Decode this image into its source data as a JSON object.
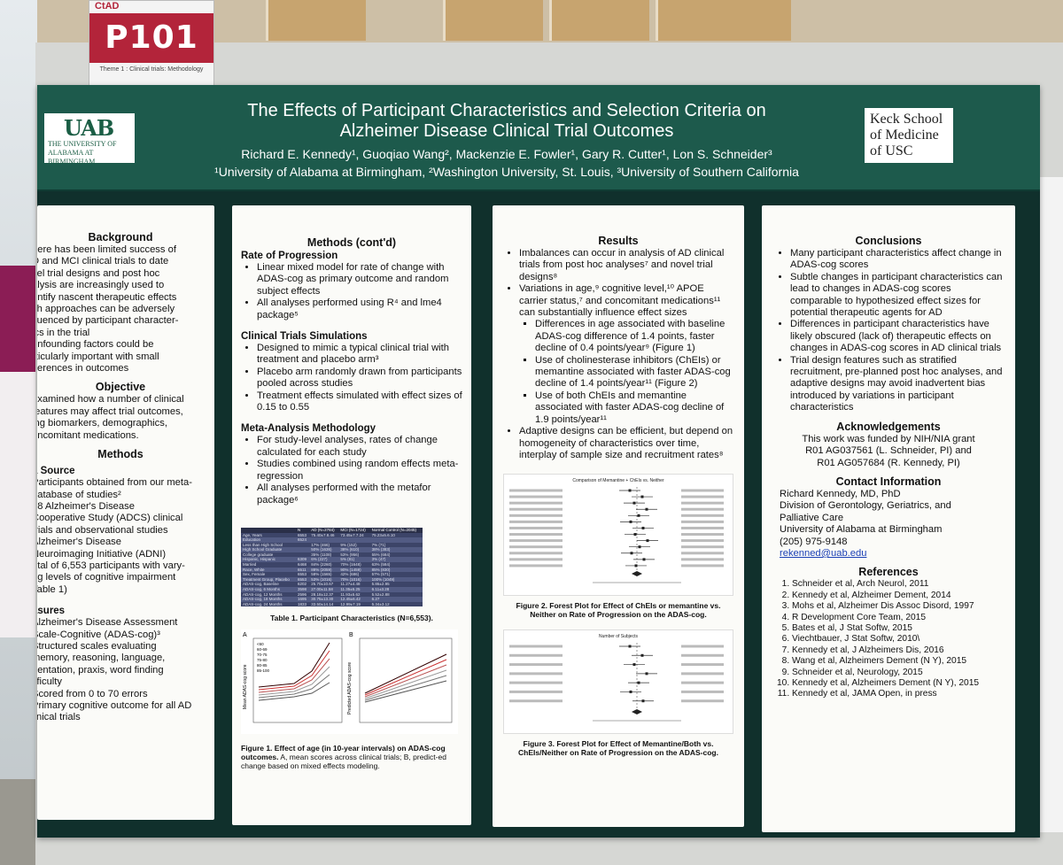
{
  "sign": {
    "logo_text": "CtAD",
    "number": "P101",
    "theme": "Theme 1 : Clinical trials: Methodology"
  },
  "header": {
    "uab_logo": {
      "mark": "UAB",
      "line1": "THE UNIVERSITY OF",
      "line2": "ALABAMA AT BIRMINGHAM"
    },
    "keck_logo": {
      "line1": "Keck School",
      "line2": "of Medicine",
      "line3": "of USC"
    },
    "title_line1": "The Effects of Participant Characteristics and Selection Criteria on",
    "title_line2": "Alzheimer Disease Clinical Trial Outcomes",
    "authors": "Richard E. Kennedy¹, Guoqiao Wang², Mackenzie E. Fowler¹, Gary R. Cutter¹, Lon S. Schneider³",
    "affiliations": "¹University of Alabama at Birmingham, ²Washington University, St. Louis, ³University of Southern California"
  },
  "col1": {
    "background_title": "Background",
    "background_lines": [
      "here has been limited success of",
      "D and MCI clinical trials to date",
      "vel trial designs and post hoc",
      "alysis are increasingly used to",
      "entify nascent therapeutic effects",
      "ch approaches can be adversely",
      "fluenced by participant character-",
      "ics in the trial",
      "onfounding factors could be",
      "rticularly important with small",
      "fferences in outcomes"
    ],
    "objective_title": "Objective",
    "objective_lines": [
      "examined how a number of clinical",
      "features may affect trial outcomes,",
      "ing biomarkers, demographics,",
      "oncomitant medications."
    ],
    "methods_title": "Methods",
    "source_heading": "a Source",
    "source_lines": [
      "Participants obtained from our meta-",
      "database of studies²",
      "18 Alzheimer's Disease",
      "Cooperative Study (ADCS) clinical",
      "trials and observational studies",
      "Alzheimer's Disease",
      "Neuroimaging Initiative (ADNI)",
      "otal of 6,553 participants with vary-",
      "ng levels of cognitive impairment",
      "Table 1)"
    ],
    "measures_heading": "asures",
    "measures_lines": [
      "Alzheimer's Disease Assessment",
      "Scale-Cognitive (ADAS-cog)³",
      "Structured scales evaluating",
      "memory, reasoning, language,",
      "rientation, praxis, word finding",
      "ifficulty",
      "Scored from 0 to 70 errors",
      "Primary cognitive outcome for all AD",
      "linical trials"
    ]
  },
  "col2": {
    "title": "Methods (cont'd)",
    "rate_heading": "Rate of Progression",
    "rate_items": [
      "Linear mixed model for rate of change with ADAS-cog as primary outcome and random subject effects",
      "All analyses performed using R⁴ and lme4 package⁵"
    ],
    "sim_heading": "Clinical Trials Simulations",
    "sim_items": [
      "Designed to mimic a typical clinical trial with treatment and placebo arm³",
      "Placebo arm randomly drawn from participants pooled across studies",
      "Treatment effects simulated with effect sizes of 0.15 to 0.55"
    ],
    "meta_heading": "Meta-Analysis Methodology",
    "meta_items": [
      "For study-level analyses, rates of change calculated for each study",
      "Studies combined using random effects meta-regression",
      "All analyses performed with the metafor package⁶"
    ],
    "table": {
      "headers": [
        "",
        "N",
        "AD (N=2784)",
        "MCI (N=1724)",
        "Normal Control (N=2045)"
      ],
      "rows": [
        [
          "Age, Years",
          "6553",
          "75.40±7.8.46",
          "73.45±7.7.24",
          "75.23±5.6.10"
        ],
        [
          "Education",
          "6524",
          "",
          "",
          ""
        ],
        [
          "Less than High School",
          "",
          "17% (466)",
          "9% (152)",
          "7% (71)"
        ],
        [
          "High School Graduate",
          "",
          "50% (1636)",
          "38% (610)",
          "38% (383)"
        ],
        [
          "College graduate",
          "",
          "35% (1108)",
          "53% (956)",
          "55% (684)"
        ],
        [
          "Hispanic, Hispanic",
          "6309",
          "6% (227)",
          "5% (81)",
          "3% (47)"
        ],
        [
          "Married",
          "6468",
          "84% (2260)",
          "70% (1648)",
          "63% (584)"
        ],
        [
          "Race, White",
          "6511",
          "88% (2059)",
          "90% (1459)",
          "85% (830)"
        ],
        [
          "Sex, Female",
          "6553",
          "58% (1565)",
          "42% (686)",
          "57% (571)"
        ],
        [
          "Treatment Group, Placebo",
          "6553",
          "53% (1016)",
          "70% (1016)",
          "100% (1049)"
        ],
        [
          "ADAS-cog, Baseline",
          "6202",
          "25.70±10.67",
          "11.27±4.48",
          "5.86±2.95"
        ],
        [
          "ADAS-cog, 6 Months",
          "3598",
          "27.00±11.58",
          "11.35±5.25",
          "6.11±3.28"
        ],
        [
          "ADAS-cog, 12 Months",
          "2596",
          "28.18±12.37",
          "11.93±5.62",
          "5.52±2.88"
        ],
        [
          "ADAS-cog, 18 Months",
          "1695",
          "30.75±13.30",
          "12.45±6.42",
          "6.27"
        ],
        [
          "ADAS-cog, 24 Months",
          "1833",
          "33.50±14.14",
          "12.99±7.19",
          "5.34±3.12"
        ]
      ],
      "caption": "Table 1. Participant Characteristics (N=6,553)."
    },
    "figure1": {
      "panel_a": "A",
      "panel_b": "B",
      "ylabel_a": "Mean ADAS-cog score",
      "ylabel_b": "Predicted ADAS-cog score",
      "legend": [
        "<60",
        "60-69",
        "70-75",
        "75-80",
        "80-85",
        "85-100"
      ],
      "caption_bold": "Figure 1. Effect of age (in 10-year intervals) on ADAS-cog outcomes.",
      "caption_norm": " A, mean scores across clinical trials; B, predict-ed change based on mixed effects modeling."
    }
  },
  "col3": {
    "title": "Results",
    "items": [
      "Imbalances can occur in analysis of AD clinical trials from post hoc analyses⁷ and novel trial designs⁸",
      "Variations in age,⁹ cognitive level,¹⁰ APOE carrier status,⁷ and concomitant medications¹¹ can substantially influence effect sizes"
    ],
    "subitems": [
      "Differences in age associated with baseline ADAS-cog difference of 1.4 points, faster decline of 0.4 points/year⁹ (Figure 1)",
      "Use of cholinesterase inhibitors (ChEIs) or memantine associated with faster ADAS-cog decline of 1.4 points/year¹¹ (Figure 2)",
      "Use of both ChEIs and memantine associated with faster ADAS-cog decline of 1.9 points/year¹¹"
    ],
    "items2": [
      "Adaptive designs can be efficient, but depend on homogeneity of characteristics over time, interplay of sample size and recruitment rates⁸"
    ],
    "fig2_title": "Comparison of Memantine + ChEIs vs. Neither",
    "fig2_caption": "Figure 2. Forest Plot for Effect of ChEIs or memantine vs. Neither on Rate of Progression on the ADAS-cog.",
    "fig3_title": "Number of Subjects",
    "fig3_caption": "Figure 3. Forest Plot for Effect of Memantine/Both vs. ChEIs/Neither on Rate of Progression on the ADAS-cog."
  },
  "col4": {
    "title": "Conclusions",
    "items": [
      "Many participant characteristics affect change in ADAS-cog scores",
      "Subtle changes in participant characteristics can lead to changes in ADAS-cog scores comparable to hypothesized effect sizes for potential therapeutic agents for AD",
      "Differences in participant characteristics have likely obscured (lack of) therapeutic effects on changes in ADAS-cog scores in AD clinical trials",
      "Trial design features such as stratified recruitment, pre-planned post hoc analyses, and adaptive designs may avoid inadvertent bias introduced by variations in participant characteristics"
    ],
    "ack_title": "Acknowledgements",
    "ack_lines": [
      "This work was funded by NIH/NIA grant",
      "R01 AG037561 (L. Schneider, PI) and",
      "R01 AG057684 (R. Kennedy, PI)"
    ],
    "contact_title": "Contact Information",
    "contact_lines": [
      "Richard Kennedy, MD, PhD",
      "Division of Gerontology, Geriatrics, and",
      "Palliative Care",
      "University of Alabama at Birmingham",
      "(205) 975-9148"
    ],
    "email": "rekenned@uab.edu",
    "refs_title": "References",
    "refs": [
      "Schneider et al, Arch Neurol, 2011",
      "Kennedy et al, Alzheimer Dement, 2014",
      "Mohs et al, Alzheimer Dis Assoc Disord, 1997",
      "R Development Core Team, 2015",
      "Bates et al, J Stat Softw, 2015",
      "Viechtbauer, J Stat Softw, 2010\\",
      "Kennedy et al, J Alzheimers Dis, 2016",
      "Wang et al, Alzheimers Dement (N Y), 2015",
      "Schneider et al, Neurology, 2015",
      "Kennedy et al, Alzheimers Dement (N Y), 2015",
      "Kennedy et al, JAMA Open, in press"
    ]
  },
  "colors": {
    "header_green": "#1d5a4c",
    "poster_back": "#10302c",
    "sign_red": "#b3243a"
  }
}
